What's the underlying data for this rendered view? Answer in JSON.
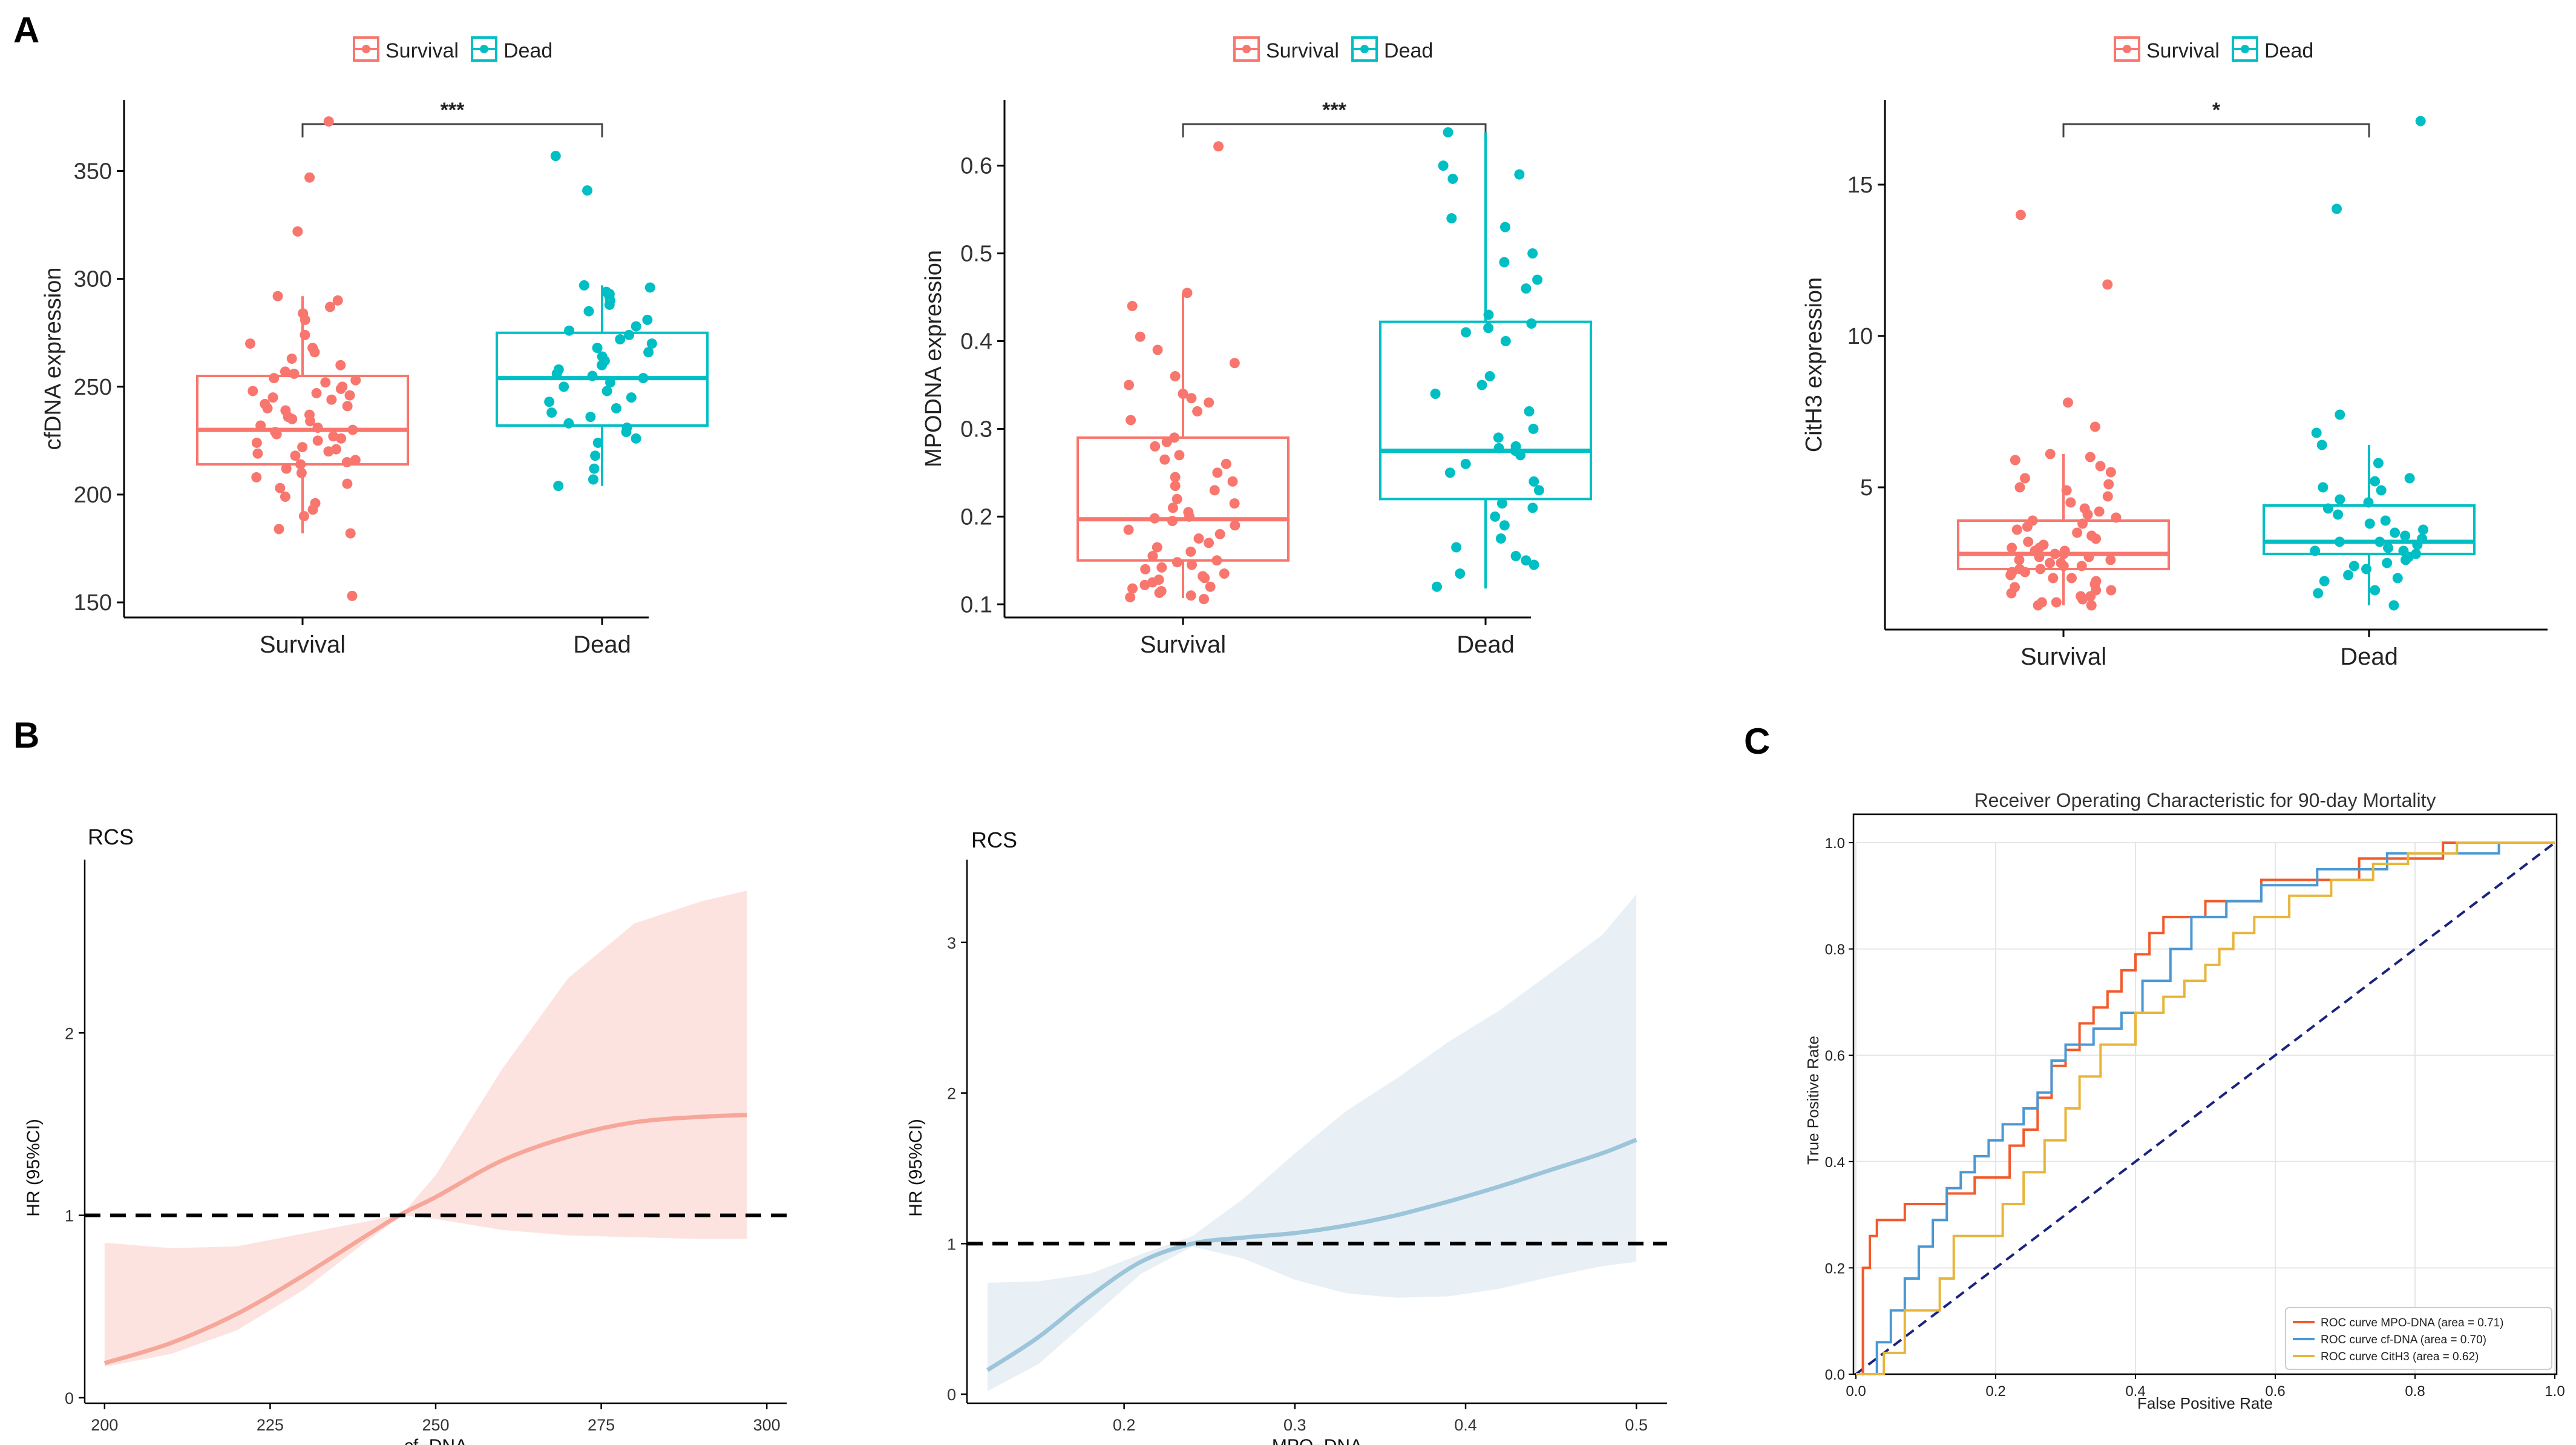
{
  "panel_labels": {
    "a": "A",
    "b": "B",
    "c": "C"
  },
  "colors": {
    "survival": "#F8766D",
    "dead": "#00BFC4",
    "rcs_cf_band": "#FDE3DF",
    "rcs_cf_line": "#F6A79A",
    "rcs_mpo_band": "#E9F0F5",
    "rcs_mpo_line": "#9CC5DA",
    "roc_mpo": "#F25A2B",
    "roc_cf": "#4A98D4",
    "roc_cith3": "#E8B53A",
    "diagonal": "#1A237E",
    "axis": "#000000"
  },
  "chart_data": [
    {
      "id": "box_cfdna",
      "type": "box",
      "legend": [
        "Survival",
        "Dead"
      ],
      "categories": [
        "Survival",
        "Dead"
      ],
      "ylabel": "cfDNA expression",
      "yticks": [
        150,
        200,
        250,
        300,
        350
      ],
      "ylim": [
        143,
        383
      ],
      "significance": "***",
      "boxes": [
        {
          "group": "Survival",
          "q1": 214,
          "median": 230,
          "q3": 255,
          "whisker_low": 182,
          "whisker_high": 292
        },
        {
          "group": "Dead",
          "q1": 232,
          "median": 254,
          "q3": 275,
          "whisker_low": 204,
          "whisker_high": 297
        }
      ],
      "points": {
        "Survival": [
          373,
          347,
          322,
          292,
          290,
          287,
          284,
          281,
          274,
          270,
          268,
          266,
          263,
          260,
          257,
          256,
          254,
          253,
          252,
          250,
          249,
          248,
          247,
          246,
          245,
          244,
          242,
          241,
          240,
          239,
          237,
          236,
          235,
          234,
          232,
          231,
          230,
          229,
          228,
          227,
          226,
          225,
          224,
          222,
          221,
          220,
          219,
          218,
          216,
          215,
          214,
          212,
          210,
          208,
          205,
          203,
          199,
          196,
          193,
          190,
          184,
          182,
          153
        ],
        "Dead": [
          357,
          341,
          297,
          296,
          294,
          293,
          292,
          290,
          288,
          285,
          281,
          278,
          276,
          274,
          272,
          270,
          268,
          266,
          264,
          262,
          260,
          258,
          256,
          255,
          254,
          252,
          250,
          248,
          245,
          243,
          240,
          238,
          236,
          233,
          231,
          229,
          226,
          224,
          218,
          212,
          207,
          204
        ]
      }
    },
    {
      "id": "box_mpodna",
      "type": "box",
      "legend": [
        "Survival",
        "Dead"
      ],
      "categories": [
        "Survival",
        "Dead"
      ],
      "ylabel": "MPODNA expression",
      "yticks": [
        0.1,
        0.2,
        0.3,
        0.4,
        0.5,
        0.6
      ],
      "ylim": [
        0.085,
        0.675
      ],
      "significance": "***",
      "boxes": [
        {
          "group": "Survival",
          "q1": 0.15,
          "median": 0.197,
          "q3": 0.29,
          "whisker_low": 0.107,
          "whisker_high": 0.455
        },
        {
          "group": "Dead",
          "q1": 0.22,
          "median": 0.275,
          "q3": 0.422,
          "whisker_low": 0.118,
          "whisker_high": 0.638
        }
      ],
      "points": {
        "Survival": [
          0.622,
          0.455,
          0.44,
          0.405,
          0.39,
          0.375,
          0.36,
          0.35,
          0.34,
          0.335,
          0.33,
          0.32,
          0.31,
          0.29,
          0.285,
          0.28,
          0.27,
          0.265,
          0.26,
          0.25,
          0.245,
          0.24,
          0.235,
          0.23,
          0.22,
          0.215,
          0.21,
          0.205,
          0.2,
          0.198,
          0.195,
          0.19,
          0.185,
          0.18,
          0.175,
          0.17,
          0.165,
          0.16,
          0.155,
          0.15,
          0.148,
          0.145,
          0.142,
          0.14,
          0.135,
          0.132,
          0.13,
          0.128,
          0.125,
          0.122,
          0.12,
          0.118,
          0.115,
          0.113,
          0.11,
          0.108,
          0.106
        ],
        "Dead": [
          0.638,
          0.6,
          0.59,
          0.585,
          0.54,
          0.53,
          0.5,
          0.49,
          0.47,
          0.46,
          0.43,
          0.42,
          0.415,
          0.41,
          0.4,
          0.36,
          0.35,
          0.34,
          0.32,
          0.3,
          0.29,
          0.28,
          0.278,
          0.275,
          0.27,
          0.26,
          0.25,
          0.24,
          0.23,
          0.215,
          0.21,
          0.2,
          0.19,
          0.175,
          0.165,
          0.155,
          0.15,
          0.145,
          0.135,
          0.12
        ]
      }
    },
    {
      "id": "box_cith3",
      "type": "box",
      "legend": [
        "Survival",
        "Dead"
      ],
      "categories": [
        "Survival",
        "Dead"
      ],
      "ylabel": "CitH3 expression",
      "yticks": [
        5,
        10,
        15
      ],
      "ylim": [
        0.3,
        17.8
      ],
      "significance": "*",
      "boxes": [
        {
          "group": "Survival",
          "q1": 2.3,
          "median": 2.8,
          "q3": 3.9,
          "whisker_low": 1.1,
          "whisker_high": 6.1
        },
        {
          "group": "Dead",
          "q1": 2.8,
          "median": 3.2,
          "q3": 4.4,
          "whisker_low": 1.1,
          "whisker_high": 6.4
        }
      ],
      "points": {
        "Survival": [
          14.0,
          11.7,
          7.8,
          7.0,
          6.1,
          6.0,
          5.9,
          5.7,
          5.5,
          5.3,
          5.1,
          5.0,
          4.9,
          4.7,
          4.5,
          4.3,
          4.2,
          4.1,
          4.0,
          3.9,
          3.8,
          3.7,
          3.6,
          3.5,
          3.4,
          3.3,
          3.2,
          3.1,
          3.0,
          3.0,
          2.9,
          2.9,
          2.8,
          2.8,
          2.7,
          2.7,
          2.6,
          2.6,
          2.5,
          2.5,
          2.4,
          2.4,
          2.3,
          2.3,
          2.2,
          2.2,
          2.1,
          2.0,
          2.0,
          1.9,
          1.8,
          1.8,
          1.7,
          1.6,
          1.6,
          1.5,
          1.4,
          1.4,
          1.3,
          1.2,
          1.2,
          1.1,
          1.1
        ],
        "Dead": [
          17.1,
          14.2,
          7.4,
          6.8,
          6.4,
          5.8,
          5.3,
          5.2,
          5.0,
          4.9,
          4.6,
          4.5,
          4.3,
          4.1,
          3.9,
          3.8,
          3.6,
          3.5,
          3.4,
          3.3,
          3.2,
          3.2,
          3.1,
          3.0,
          2.9,
          2.9,
          2.8,
          2.7,
          2.6,
          2.5,
          2.4,
          2.3,
          2.1,
          2.0,
          1.9,
          1.6,
          1.5,
          1.1
        ]
      }
    },
    {
      "id": "rcs_cfdna",
      "type": "line",
      "title": "RCS",
      "xlabel": "cf−DNA",
      "ylabel": "HR (95%CI)",
      "xticks": [
        200,
        225,
        250,
        275,
        300
      ],
      "yticks": [
        0,
        1,
        2
      ],
      "xlim": [
        197,
        303
      ],
      "ylim": [
        -0.03,
        2.95
      ],
      "reference_hr": 1,
      "x": [
        200,
        210,
        220,
        230,
        240,
        245,
        250,
        260,
        270,
        280,
        290,
        297
      ],
      "hr": [
        0.19,
        0.3,
        0.46,
        0.67,
        0.9,
        1.01,
        1.1,
        1.3,
        1.43,
        1.51,
        1.54,
        1.55
      ],
      "lower": [
        0.17,
        0.24,
        0.37,
        0.59,
        0.87,
        1.0,
        0.98,
        0.92,
        0.89,
        0.88,
        0.87,
        0.87
      ],
      "upper": [
        0.85,
        0.82,
        0.83,
        0.9,
        0.97,
        1.01,
        1.22,
        1.8,
        2.3,
        2.6,
        2.72,
        2.78
      ]
    },
    {
      "id": "rcs_mpodna",
      "type": "line",
      "title": "RCS",
      "xlabel": "MPO−DNA",
      "ylabel": "HR (95%CI)",
      "xticks": [
        0.2,
        0.3,
        0.4,
        0.5
      ],
      "yticks": [
        0,
        1,
        2,
        3
      ],
      "xlim": [
        0.108,
        0.518
      ],
      "ylim": [
        -0.06,
        3.55
      ],
      "reference_hr": 1,
      "x": [
        0.12,
        0.15,
        0.18,
        0.21,
        0.24,
        0.27,
        0.3,
        0.33,
        0.36,
        0.39,
        0.42,
        0.45,
        0.48,
        0.5
      ],
      "hr": [
        0.16,
        0.38,
        0.65,
        0.88,
        1.0,
        1.04,
        1.07,
        1.12,
        1.19,
        1.28,
        1.38,
        1.49,
        1.6,
        1.69
      ],
      "lower": [
        0.02,
        0.2,
        0.5,
        0.8,
        0.98,
        0.9,
        0.76,
        0.67,
        0.64,
        0.65,
        0.7,
        0.78,
        0.85,
        0.88
      ],
      "upper": [
        0.74,
        0.75,
        0.8,
        0.93,
        1.05,
        1.3,
        1.6,
        1.88,
        2.1,
        2.34,
        2.55,
        2.8,
        3.05,
        3.32
      ]
    },
    {
      "id": "roc",
      "type": "line",
      "title": "Receiver Operating Characteristic for 90-day Mortality",
      "xlabel": "False Positive Rate",
      "ylabel": "True Positive Rate",
      "xticks": [
        0.0,
        0.2,
        0.4,
        0.6,
        0.8,
        1.0
      ],
      "yticks": [
        0.0,
        0.2,
        0.4,
        0.6,
        0.8,
        1.0
      ],
      "xlim": [
        0,
        1
      ],
      "ylim": [
        0,
        1
      ],
      "grid": true,
      "legend_position": "bottom-right",
      "series": [
        {
          "name": "ROC curve MPO-DNA (area = 0.71)",
          "fpr": [
            0,
            0.01,
            0.01,
            0.02,
            0.02,
            0.03,
            0.03,
            0.07,
            0.07,
            0.13,
            0.13,
            0.17,
            0.17,
            0.22,
            0.22,
            0.24,
            0.24,
            0.26,
            0.26,
            0.28,
            0.28,
            0.3,
            0.3,
            0.32,
            0.32,
            0.34,
            0.34,
            0.36,
            0.36,
            0.38,
            0.38,
            0.4,
            0.4,
            0.42,
            0.42,
            0.44,
            0.44,
            0.5,
            0.5,
            0.58,
            0.58,
            0.72,
            0.72,
            0.84,
            0.84,
            1.0
          ],
          "tpr": [
            0,
            0,
            0.2,
            0.2,
            0.26,
            0.26,
            0.29,
            0.29,
            0.32,
            0.32,
            0.34,
            0.34,
            0.37,
            0.37,
            0.43,
            0.43,
            0.46,
            0.46,
            0.52,
            0.52,
            0.58,
            0.58,
            0.61,
            0.61,
            0.66,
            0.66,
            0.69,
            0.69,
            0.72,
            0.72,
            0.76,
            0.76,
            0.79,
            0.79,
            0.83,
            0.83,
            0.86,
            0.86,
            0.89,
            0.89,
            0.93,
            0.93,
            0.97,
            0.97,
            1.0,
            1.0
          ]
        },
        {
          "name": "ROC curve cf-DNA (area = 0.70)",
          "fpr": [
            0,
            0.03,
            0.03,
            0.05,
            0.05,
            0.07,
            0.07,
            0.09,
            0.09,
            0.11,
            0.11,
            0.13,
            0.13,
            0.15,
            0.15,
            0.17,
            0.17,
            0.19,
            0.19,
            0.21,
            0.21,
            0.24,
            0.24,
            0.26,
            0.26,
            0.28,
            0.28,
            0.3,
            0.3,
            0.34,
            0.34,
            0.38,
            0.38,
            0.41,
            0.41,
            0.45,
            0.45,
            0.48,
            0.48,
            0.53,
            0.53,
            0.58,
            0.58,
            0.66,
            0.66,
            0.76,
            0.76,
            0.92,
            0.92,
            1.0
          ],
          "tpr": [
            0,
            0,
            0.06,
            0.06,
            0.12,
            0.12,
            0.18,
            0.18,
            0.24,
            0.24,
            0.29,
            0.29,
            0.35,
            0.35,
            0.38,
            0.38,
            0.41,
            0.41,
            0.44,
            0.44,
            0.47,
            0.47,
            0.5,
            0.5,
            0.53,
            0.53,
            0.59,
            0.59,
            0.62,
            0.62,
            0.65,
            0.65,
            0.68,
            0.68,
            0.74,
            0.74,
            0.8,
            0.8,
            0.86,
            0.86,
            0.89,
            0.89,
            0.92,
            0.92,
            0.95,
            0.95,
            0.98,
            0.98,
            1.0,
            1.0
          ]
        },
        {
          "name": "ROC curve CitH3 (area = 0.62)",
          "fpr": [
            0,
            0.04,
            0.04,
            0.07,
            0.07,
            0.12,
            0.12,
            0.14,
            0.14,
            0.21,
            0.21,
            0.24,
            0.24,
            0.27,
            0.27,
            0.3,
            0.3,
            0.32,
            0.32,
            0.35,
            0.35,
            0.4,
            0.4,
            0.44,
            0.44,
            0.47,
            0.47,
            0.5,
            0.5,
            0.52,
            0.52,
            0.54,
            0.54,
            0.57,
            0.57,
            0.62,
            0.62,
            0.68,
            0.68,
            0.74,
            0.74,
            0.79,
            0.79,
            0.86,
            0.86,
            1.0
          ],
          "tpr": [
            0,
            0,
            0.04,
            0.04,
            0.12,
            0.12,
            0.18,
            0.18,
            0.26,
            0.26,
            0.32,
            0.32,
            0.38,
            0.38,
            0.44,
            0.44,
            0.5,
            0.5,
            0.56,
            0.56,
            0.62,
            0.62,
            0.68,
            0.68,
            0.71,
            0.71,
            0.74,
            0.74,
            0.77,
            0.77,
            0.8,
            0.8,
            0.83,
            0.83,
            0.86,
            0.86,
            0.9,
            0.9,
            0.93,
            0.93,
            0.96,
            0.96,
            0.98,
            0.98,
            1.0,
            1.0
          ]
        }
      ]
    }
  ]
}
